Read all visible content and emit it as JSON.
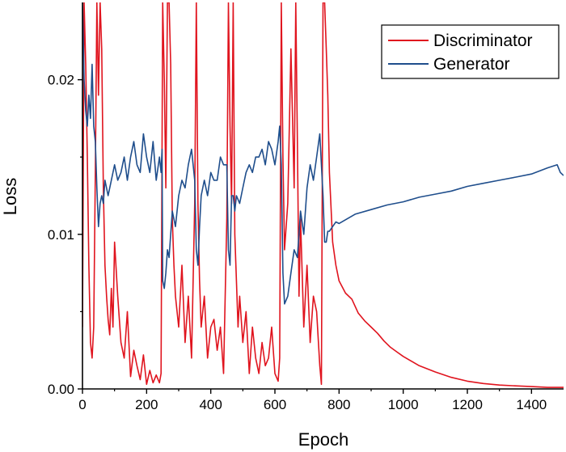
{
  "chart_data": {
    "type": "line",
    "title": "",
    "xlabel": "Epoch",
    "ylabel": "Loss",
    "xlim": [
      0,
      1500
    ],
    "ylim": [
      0,
      0.025
    ],
    "x_ticks": [
      0,
      200,
      400,
      600,
      800,
      1000,
      1200,
      1400
    ],
    "x_tick_labels": [
      "0",
      "200",
      "400",
      "600",
      "800",
      "1000",
      "1200",
      "1400"
    ],
    "y_ticks": [
      0,
      0.01,
      0.02
    ],
    "y_tick_labels": [
      "0.00",
      "0.01",
      "0.02"
    ],
    "grid": false,
    "legend_position": "top-right",
    "series": [
      {
        "name": "Discriminator",
        "color": "#e0141e",
        "x": [
          0,
          5,
          10,
          15,
          20,
          25,
          30,
          35,
          40,
          45,
          50,
          55,
          60,
          65,
          70,
          75,
          80,
          85,
          90,
          95,
          100,
          110,
          120,
          130,
          140,
          150,
          160,
          170,
          180,
          190,
          200,
          210,
          220,
          230,
          240,
          245,
          250,
          255,
          260,
          265,
          270,
          275,
          280,
          285,
          290,
          300,
          310,
          320,
          330,
          340,
          350,
          355,
          360,
          365,
          370,
          380,
          390,
          400,
          410,
          420,
          430,
          440,
          450,
          455,
          460,
          465,
          470,
          475,
          480,
          485,
          490,
          500,
          510,
          520,
          530,
          540,
          550,
          560,
          570,
          580,
          590,
          600,
          610,
          615,
          620,
          625,
          630,
          640,
          650,
          660,
          665,
          670,
          675,
          680,
          690,
          700,
          710,
          720,
          730,
          740,
          745,
          750,
          755,
          760,
          765,
          770,
          780,
          790,
          800,
          820,
          840,
          860,
          880,
          900,
          920,
          940,
          960,
          980,
          1000,
          1050,
          1100,
          1150,
          1200,
          1250,
          1300,
          1350,
          1400,
          1450,
          1500
        ],
        "values": [
          0.004,
          0.025,
          0.021,
          0.015,
          0.008,
          0.003,
          0.002,
          0.004,
          0.014,
          0.025,
          0.019,
          0.025,
          0.022,
          0.013,
          0.008,
          0.006,
          0.0045,
          0.0035,
          0.0065,
          0.004,
          0.0095,
          0.006,
          0.003,
          0.002,
          0.005,
          0.0008,
          0.0025,
          0.0015,
          0.0006,
          0.0022,
          0.0003,
          0.0012,
          0.0004,
          0.0009,
          0.0004,
          0.001,
          0.025,
          0.02,
          0.013,
          0.025,
          0.025,
          0.021,
          0.011,
          0.008,
          0.006,
          0.004,
          0.008,
          0.003,
          0.006,
          0.002,
          0.012,
          0.025,
          0.012,
          0.007,
          0.004,
          0.006,
          0.002,
          0.004,
          0.0045,
          0.0025,
          0.004,
          0.001,
          0.011,
          0.025,
          0.017,
          0.012,
          0.025,
          0.01,
          0.007,
          0.004,
          0.006,
          0.003,
          0.005,
          0.001,
          0.004,
          0.002,
          0.001,
          0.003,
          0.0015,
          0.002,
          0.004,
          0.001,
          0.0005,
          0.002,
          0.025,
          0.015,
          0.009,
          0.012,
          0.022,
          0.013,
          0.025,
          0.016,
          0.006,
          0.011,
          0.004,
          0.008,
          0.003,
          0.006,
          0.005,
          0.0015,
          0.0003,
          0.025,
          0.025,
          0.022,
          0.019,
          0.014,
          0.0095,
          0.008,
          0.007,
          0.0062,
          0.0058,
          0.0049,
          0.0044,
          0.004,
          0.0036,
          0.0031,
          0.0027,
          0.0024,
          0.0021,
          0.0015,
          0.0011,
          0.00075,
          0.0005,
          0.00035,
          0.00025,
          0.0002,
          0.00015,
          0.0001,
          0.0001
        ]
      },
      {
        "name": "Generator",
        "color": "#1f4e8c",
        "x": [
          0,
          5,
          10,
          15,
          20,
          25,
          30,
          35,
          40,
          45,
          50,
          55,
          60,
          65,
          70,
          80,
          90,
          100,
          110,
          120,
          130,
          140,
          150,
          160,
          170,
          180,
          190,
          200,
          210,
          220,
          230,
          240,
          245,
          248,
          250,
          255,
          260,
          265,
          270,
          280,
          290,
          300,
          310,
          320,
          330,
          340,
          350,
          355,
          360,
          365,
          370,
          380,
          390,
          400,
          410,
          420,
          430,
          440,
          450,
          455,
          460,
          465,
          470,
          475,
          480,
          490,
          500,
          510,
          520,
          530,
          540,
          550,
          560,
          570,
          580,
          590,
          600,
          610,
          615,
          620,
          625,
          630,
          640,
          650,
          660,
          670,
          680,
          690,
          700,
          710,
          720,
          730,
          740,
          745,
          750,
          755,
          760,
          765,
          770,
          780,
          790,
          800,
          850,
          900,
          950,
          1000,
          1050,
          1100,
          1150,
          1200,
          1250,
          1300,
          1350,
          1400,
          1450,
          1480,
          1490,
          1500
        ],
        "values": [
          0.025,
          0.02,
          0.018,
          0.017,
          0.019,
          0.0175,
          0.021,
          0.017,
          0.016,
          0.013,
          0.0105,
          0.012,
          0.0125,
          0.012,
          0.0135,
          0.0125,
          0.0135,
          0.0145,
          0.0135,
          0.014,
          0.015,
          0.0135,
          0.015,
          0.016,
          0.0145,
          0.014,
          0.0165,
          0.015,
          0.014,
          0.016,
          0.0135,
          0.015,
          0.014,
          0.0155,
          0.007,
          0.0065,
          0.0075,
          0.009,
          0.0085,
          0.0115,
          0.0105,
          0.0125,
          0.0135,
          0.013,
          0.0145,
          0.0155,
          0.0135,
          0.009,
          0.008,
          0.0105,
          0.0125,
          0.0135,
          0.0125,
          0.014,
          0.0135,
          0.0135,
          0.015,
          0.0145,
          0.0145,
          0.009,
          0.008,
          0.0125,
          0.0125,
          0.0115,
          0.0125,
          0.012,
          0.013,
          0.014,
          0.0145,
          0.014,
          0.015,
          0.015,
          0.0155,
          0.0145,
          0.016,
          0.0155,
          0.0145,
          0.016,
          0.017,
          0.0145,
          0.0075,
          0.0055,
          0.006,
          0.0075,
          0.009,
          0.0085,
          0.0115,
          0.01,
          0.013,
          0.0145,
          0.0135,
          0.015,
          0.0165,
          0.0145,
          0.0125,
          0.0095,
          0.0095,
          0.0102,
          0.0102,
          0.0105,
          0.0108,
          0.0107,
          0.0113,
          0.0116,
          0.0119,
          0.0121,
          0.0124,
          0.0126,
          0.0128,
          0.0131,
          0.0133,
          0.0135,
          0.0137,
          0.0139,
          0.0143,
          0.0145,
          0.014,
          0.0138
        ]
      }
    ]
  }
}
